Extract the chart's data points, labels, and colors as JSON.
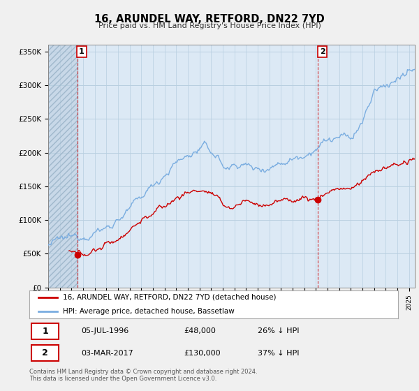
{
  "title": "16, ARUNDEL WAY, RETFORD, DN22 7YD",
  "subtitle": "Price paid vs. HM Land Registry's House Price Index (HPI)",
  "ylabel_ticks": [
    "£0",
    "£50K",
    "£100K",
    "£150K",
    "£200K",
    "£250K",
    "£300K",
    "£350K"
  ],
  "ytick_values": [
    0,
    50000,
    100000,
    150000,
    200000,
    250000,
    300000,
    350000
  ],
  "ylim": [
    0,
    360000
  ],
  "xlim_start": 1994.0,
  "xlim_end": 2025.5,
  "hpi_color": "#7aade0",
  "price_color": "#cc0000",
  "background_color": "#f0f0f0",
  "plot_bg_color": "#dce9f5",
  "grid_color": "#b8cfe0",
  "ann1_x": 1996.5,
  "ann1_y": 48000,
  "ann2_x": 2017.17,
  "ann2_y": 130000,
  "annotation1": {
    "date": "05-JUL-1996",
    "price": "£48,000",
    "pct": "26% ↓ HPI"
  },
  "annotation2": {
    "date": "03-MAR-2017",
    "price": "£130,000",
    "pct": "37% ↓ HPI"
  },
  "legend_line1": "16, ARUNDEL WAY, RETFORD, DN22 7YD (detached house)",
  "legend_line2": "HPI: Average price, detached house, Bassetlaw",
  "footer": "Contains HM Land Registry data © Crown copyright and database right 2024.\nThis data is licensed under the Open Government Licence v3.0.",
  "hatch_region_start": 1994.0,
  "hatch_region_end": 1996.5
}
